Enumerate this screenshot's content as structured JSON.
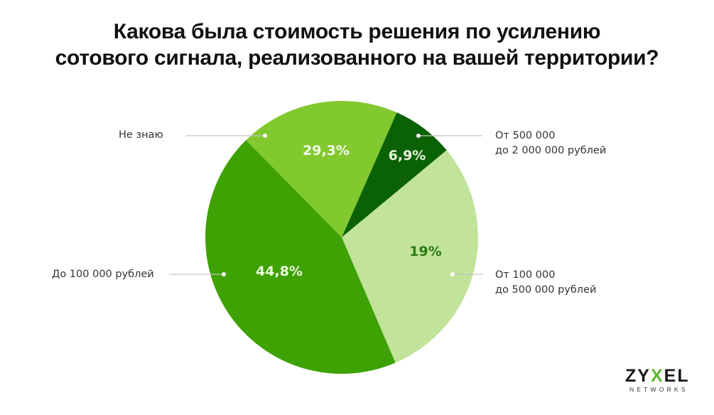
{
  "title": {
    "line1": "Какова была стоимость решения по усилению",
    "line2": "сотового сигнала, реализованного на вашей территории?"
  },
  "chart_data": {
    "type": "pie",
    "title": "Какова была стоимость решения по усилению сотового сигнала, реализованного на вашей территории?",
    "categories": [
      "Не знаю",
      "От 500 000 до 2 000 000 рублей",
      "От 100 000 до 500 000 рублей",
      "До 100 000 рублей"
    ],
    "values": [
      29.3,
      6.9,
      19,
      44.8
    ],
    "value_labels": [
      "29,3%",
      "6,9%",
      "19%",
      "44,8%"
    ],
    "colors": [
      "#82c92f",
      "#0a6204",
      "#c1e39a",
      "#3ea104"
    ],
    "label_colors": [
      "#f4fbe9",
      "#eaf6dd",
      "#2a7a12",
      "#eef9e0"
    ],
    "legend_position": "callouts"
  },
  "labels": {
    "ne_znayu": "Не знаю",
    "ot500_line1": "От 500 000",
    "ot500_line2": "до 2 000 000 рублей",
    "do100": "До 100 000 рублей",
    "ot100_line1": "От 100 000",
    "ot100_line2": "до 500 000 рублей"
  },
  "logo": {
    "part1": "ZY",
    "part2": "X",
    "part3": "EL",
    "sub": "NETWORKS",
    "accent": "#5cb82a"
  }
}
